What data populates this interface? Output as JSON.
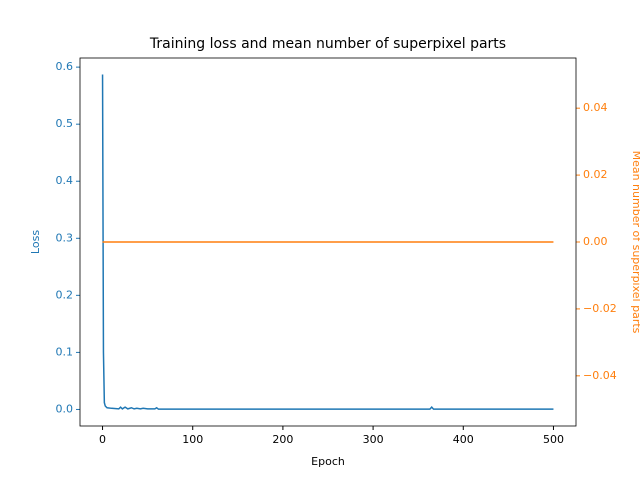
{
  "chart_data": {
    "type": "line",
    "title": "Training loss and mean number of superpixel parts",
    "x_label": "Epoch",
    "y_label": "Loss",
    "y2_label": "Mean number of superpixel parts",
    "xlim": [
      -25,
      525
    ],
    "xticks": [
      0,
      100,
      200,
      300,
      400,
      500
    ],
    "ylim": [
      -0.029,
      0.616
    ],
    "yticks": [
      {
        "value": 0,
        "label": "0.0"
      },
      0.1,
      0.2,
      0.3,
      0.4,
      0.5,
      0.6
    ],
    "y2lim": [
      -0.055,
      0.055
    ],
    "y2ticks": [
      {
        "value": -0.04,
        "label": "−0.04"
      },
      {
        "value": -0.02,
        "label": "−0.02"
      },
      {
        "value": 0,
        "label": "0.00"
      },
      0.02,
      0.04
    ],
    "series": [
      {
        "name": "Loss",
        "color": "#1f77b4",
        "x": [
          0,
          1,
          2,
          3,
          5,
          10,
          18,
          20,
          22,
          25,
          28,
          32,
          35,
          38,
          42,
          45,
          50,
          58,
          60,
          62,
          100,
          200,
          300,
          363,
          365,
          367,
          400,
          500
        ],
        "values": [
          0.587,
          0.1,
          0.012,
          0.006,
          0.003,
          0.002,
          0.001,
          0.004,
          0.001,
          0.004,
          0.001,
          0.003,
          0.001,
          0.002,
          0.001,
          0.002,
          0.001,
          0.001,
          0.003,
          0.0005,
          0.0005,
          0.0005,
          0.0005,
          0.0005,
          0.004,
          0.0005,
          0.0005,
          0.0005
        ]
      },
      {
        "name": "Mean number of superpixel parts",
        "color": "#ff7f0e",
        "axis": "y2",
        "x": [
          0,
          500
        ],
        "values": [
          0,
          0
        ]
      }
    ]
  }
}
